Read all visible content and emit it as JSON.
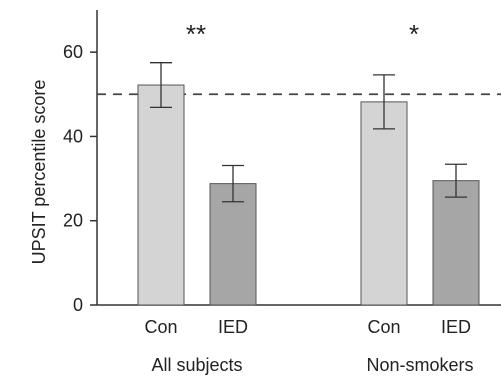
{
  "chart_data": {
    "type": "bar",
    "ylabel": "UPSIT percentile score",
    "ylim": [
      0,
      70
    ],
    "yticks": [
      0,
      20,
      40,
      60
    ],
    "reference_line": 50,
    "groups": [
      {
        "label": "All subjects",
        "significance": "**",
        "bars": [
          {
            "category": "Con",
            "value": 52.2,
            "error": 5.3,
            "color": "#d4d4d4"
          },
          {
            "category": "IED",
            "value": 28.8,
            "error": 4.3,
            "color": "#a6a6a6"
          }
        ]
      },
      {
        "label": "Non-smokers",
        "significance": "*",
        "bars": [
          {
            "category": "Con",
            "value": 48.2,
            "error": 6.4,
            "color": "#d4d4d4"
          },
          {
            "category": "IED",
            "value": 29.5,
            "error": 3.9,
            "color": "#a6a6a6"
          }
        ]
      }
    ]
  }
}
